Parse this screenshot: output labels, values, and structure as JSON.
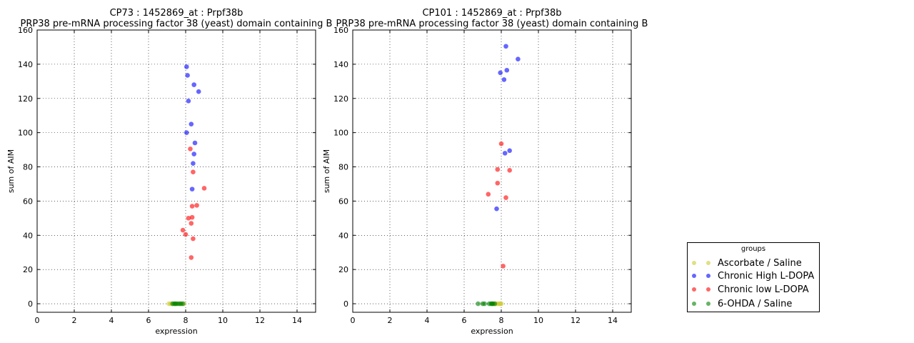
{
  "legend": {
    "title": "groups",
    "items": [
      {
        "label": "Ascorbate / Saline",
        "color": "#cccc33"
      },
      {
        "label": "Chronic High L-DOPA",
        "color": "#0000ff"
      },
      {
        "label": "Chronic low L-DOPA",
        "color": "#ff0000"
      },
      {
        "label": "6-OHDA / Saline",
        "color": "#008000"
      }
    ]
  },
  "chart_data": [
    {
      "type": "scatter",
      "title": "CP73 : 1452869_at : Prpf38b",
      "subtitle": "PRP38 pre-mRNA processing factor 38 (yeast) domain containing B",
      "xlabel": "expression",
      "ylabel": "sum of AIM",
      "xlim": [
        0,
        15
      ],
      "ylim": [
        -5,
        160
      ],
      "xticks": [
        0,
        2,
        4,
        6,
        8,
        10,
        12,
        14
      ],
      "yticks": [
        0,
        20,
        40,
        60,
        80,
        100,
        120,
        140,
        160
      ],
      "grid": true,
      "series": [
        {
          "name": "Ascorbate / Saline",
          "color": "#cccc33",
          "points": [
            [
              7.1,
              0
            ],
            [
              7.3,
              0
            ],
            [
              7.5,
              0
            ],
            [
              7.7,
              0
            ],
            [
              7.9,
              0
            ],
            [
              7.2,
              0
            ]
          ]
        },
        {
          "name": "Chronic High L-DOPA",
          "color": "#0000ff",
          "points": [
            [
              8.05,
              138.5
            ],
            [
              8.1,
              133.5
            ],
            [
              8.45,
              128
            ],
            [
              8.7,
              124
            ],
            [
              8.15,
              118.5
            ],
            [
              8.3,
              105
            ],
            [
              8.05,
              100
            ],
            [
              8.5,
              94
            ],
            [
              8.45,
              87.5
            ],
            [
              8.4,
              82
            ],
            [
              8.35,
              67
            ]
          ]
        },
        {
          "name": "Chronic low L-DOPA",
          "color": "#ff0000",
          "points": [
            [
              8.25,
              90.5
            ],
            [
              8.4,
              77
            ],
            [
              9.0,
              67.5
            ],
            [
              8.6,
              57.5
            ],
            [
              8.35,
              57
            ],
            [
              8.15,
              50
            ],
            [
              8.35,
              50.5
            ],
            [
              8.3,
              47
            ],
            [
              7.85,
              43
            ],
            [
              8.0,
              40.5
            ],
            [
              8.4,
              38
            ],
            [
              8.3,
              27
            ]
          ]
        },
        {
          "name": "6-OHDA / Saline",
          "color": "#008000",
          "points": [
            [
              7.3,
              0
            ],
            [
              7.45,
              0
            ],
            [
              7.55,
              0
            ],
            [
              7.65,
              0
            ],
            [
              7.75,
              0
            ],
            [
              7.85,
              0
            ],
            [
              7.4,
              0
            ]
          ]
        }
      ]
    },
    {
      "type": "scatter",
      "title": "CP101 : 1452869_at : Prpf38b",
      "subtitle": "PRP38 pre-mRNA processing factor 38 (yeast) domain containing B",
      "xlabel": "expression",
      "ylabel": "sum of AIM",
      "xlim": [
        0,
        15
      ],
      "ylim": [
        -5,
        160
      ],
      "xticks": [
        0,
        2,
        4,
        6,
        8,
        10,
        12,
        14
      ],
      "yticks": [
        0,
        20,
        40,
        60,
        80,
        100,
        120,
        140,
        160
      ],
      "grid": true,
      "series": [
        {
          "name": "Ascorbate / Saline",
          "color": "#cccc33",
          "points": [
            [
              7.7,
              0
            ],
            [
              7.8,
              0
            ],
            [
              7.9,
              0
            ],
            [
              7.95,
              0
            ],
            [
              8.0,
              0
            ],
            [
              7.6,
              0
            ]
          ]
        },
        {
          "name": "Chronic High L-DOPA",
          "color": "#0000ff",
          "points": [
            [
              8.25,
              150.5
            ],
            [
              8.9,
              143
            ],
            [
              8.3,
              136.5
            ],
            [
              7.95,
              135
            ],
            [
              8.15,
              131
            ],
            [
              8.45,
              89.5
            ],
            [
              8.2,
              88
            ],
            [
              7.75,
              55.5
            ]
          ]
        },
        {
          "name": "Chronic low L-DOPA",
          "color": "#ff0000",
          "points": [
            [
              8.0,
              93.5
            ],
            [
              8.45,
              78
            ],
            [
              7.8,
              78.5
            ],
            [
              7.8,
              70.5
            ],
            [
              7.3,
              64
            ],
            [
              8.25,
              62
            ],
            [
              8.1,
              22
            ]
          ]
        },
        {
          "name": "6-OHDA / Saline",
          "color": "#008000",
          "points": [
            [
              6.75,
              0
            ],
            [
              7.0,
              0
            ],
            [
              7.1,
              0
            ],
            [
              7.35,
              0
            ],
            [
              7.45,
              0
            ],
            [
              7.55,
              0
            ],
            [
              7.65,
              0
            ],
            [
              7.5,
              0
            ]
          ]
        }
      ]
    }
  ]
}
